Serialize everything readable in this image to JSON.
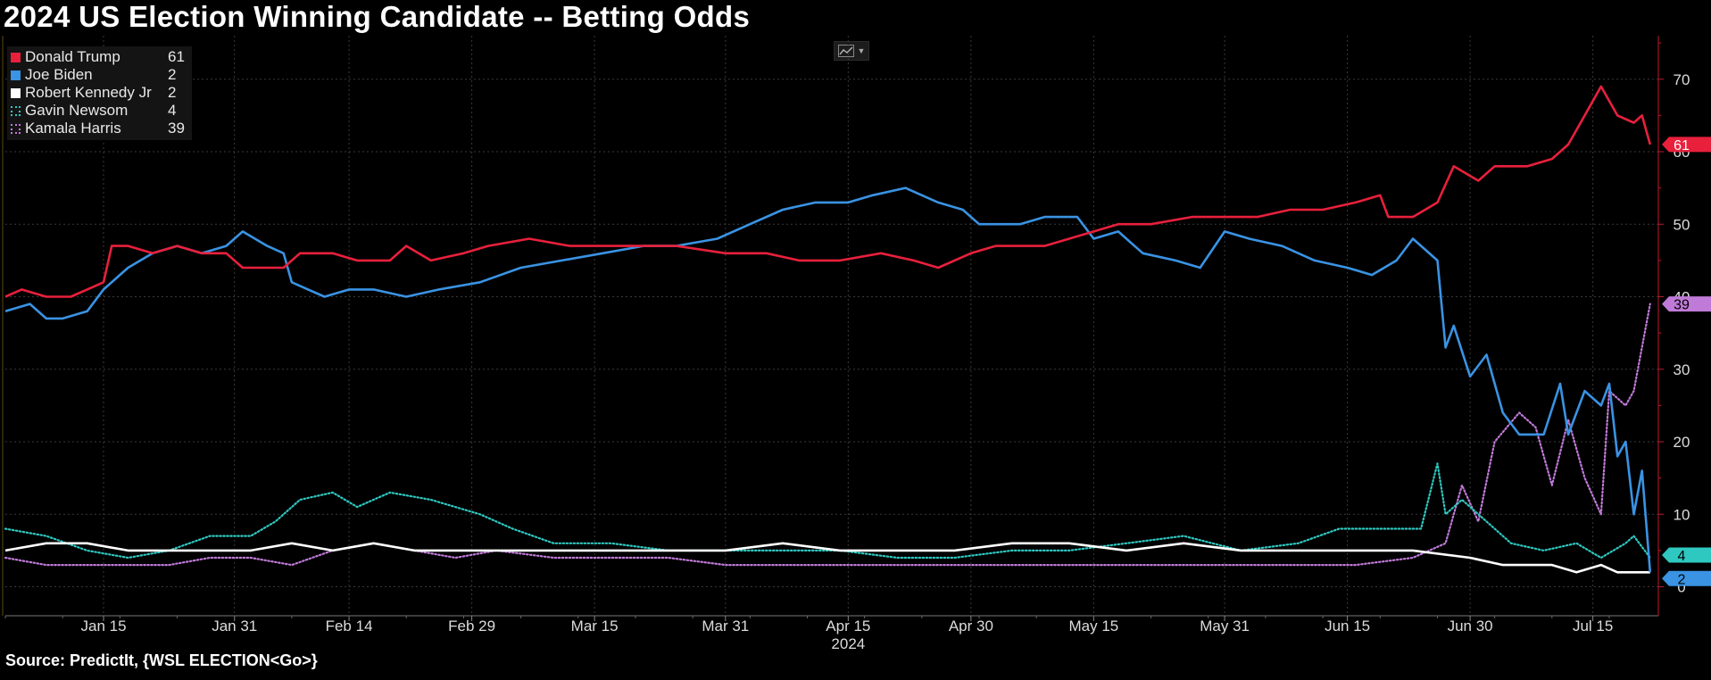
{
  "title": "2024 US Election Winning Candidate -- Betting Odds",
  "source": "Source: PredictIt, {WSL ELECTION<Go>}",
  "toolbar": {
    "icon": "line-chart-icon"
  },
  "chart_data": {
    "type": "line",
    "title": "2024 US Election Winning Candidate -- Betting Odds",
    "xlabel": "2024",
    "ylabel": "",
    "x_range": [
      "2024-01-03",
      "2024-07-23"
    ],
    "ylim": [
      -4,
      76
    ],
    "y_ticks": [
      0,
      10,
      20,
      30,
      40,
      50,
      60,
      70
    ],
    "x_ticks": [
      {
        "date": "2024-01-15",
        "label": "Jan 15"
      },
      {
        "date": "2024-01-31",
        "label": "Jan 31"
      },
      {
        "date": "2024-02-14",
        "label": "Feb 14"
      },
      {
        "date": "2024-02-29",
        "label": "Feb 29"
      },
      {
        "date": "2024-03-15",
        "label": "Mar 15"
      },
      {
        "date": "2024-03-31",
        "label": "Mar 31"
      },
      {
        "date": "2024-04-15",
        "label": "Apr 15"
      },
      {
        "date": "2024-04-30",
        "label": "Apr 30"
      },
      {
        "date": "2024-05-15",
        "label": "May 15"
      },
      {
        "date": "2024-05-31",
        "label": "May 31"
      },
      {
        "date": "2024-06-15",
        "label": "Jun 15"
      },
      {
        "date": "2024-06-30",
        "label": "Jun 30"
      },
      {
        "date": "2024-07-15",
        "label": "Jul 15"
      }
    ],
    "grid": true,
    "legend_position": "top-left",
    "series": [
      {
        "name": "Donald Trump",
        "last": "61",
        "color": "#e8203c",
        "style": "solid",
        "points": [
          [
            "2024-01-03",
            40
          ],
          [
            "2024-01-05",
            41
          ],
          [
            "2024-01-08",
            40
          ],
          [
            "2024-01-11",
            40
          ],
          [
            "2024-01-13",
            41
          ],
          [
            "2024-01-15",
            42
          ],
          [
            "2024-01-16",
            47
          ],
          [
            "2024-01-18",
            47
          ],
          [
            "2024-01-21",
            46
          ],
          [
            "2024-01-24",
            47
          ],
          [
            "2024-01-27",
            46
          ],
          [
            "2024-01-30",
            46
          ],
          [
            "2024-02-01",
            44
          ],
          [
            "2024-02-03",
            44
          ],
          [
            "2024-02-06",
            44
          ],
          [
            "2024-02-08",
            46
          ],
          [
            "2024-02-12",
            46
          ],
          [
            "2024-02-15",
            45
          ],
          [
            "2024-02-19",
            45
          ],
          [
            "2024-02-21",
            47
          ],
          [
            "2024-02-24",
            45
          ],
          [
            "2024-02-28",
            46
          ],
          [
            "2024-03-02",
            47
          ],
          [
            "2024-03-07",
            48
          ],
          [
            "2024-03-12",
            47
          ],
          [
            "2024-03-16",
            47
          ],
          [
            "2024-03-20",
            47
          ],
          [
            "2024-03-25",
            47
          ],
          [
            "2024-03-31",
            46
          ],
          [
            "2024-04-05",
            46
          ],
          [
            "2024-04-09",
            45
          ],
          [
            "2024-04-14",
            45
          ],
          [
            "2024-04-19",
            46
          ],
          [
            "2024-04-23",
            45
          ],
          [
            "2024-04-26",
            44
          ],
          [
            "2024-04-30",
            46
          ],
          [
            "2024-05-03",
            47
          ],
          [
            "2024-05-09",
            47
          ],
          [
            "2024-05-12",
            48
          ],
          [
            "2024-05-15",
            49
          ],
          [
            "2024-05-18",
            50
          ],
          [
            "2024-05-22",
            50
          ],
          [
            "2024-05-27",
            51
          ],
          [
            "2024-05-31",
            51
          ],
          [
            "2024-06-04",
            51
          ],
          [
            "2024-06-08",
            52
          ],
          [
            "2024-06-12",
            52
          ],
          [
            "2024-06-16",
            53
          ],
          [
            "2024-06-19",
            54
          ],
          [
            "2024-06-20",
            51
          ],
          [
            "2024-06-23",
            51
          ],
          [
            "2024-06-26",
            53
          ],
          [
            "2024-06-28",
            58
          ],
          [
            "2024-07-01",
            56
          ],
          [
            "2024-07-03",
            58
          ],
          [
            "2024-07-07",
            58
          ],
          [
            "2024-07-10",
            59
          ],
          [
            "2024-07-12",
            61
          ],
          [
            "2024-07-14",
            65
          ],
          [
            "2024-07-16",
            69
          ],
          [
            "2024-07-18",
            65
          ],
          [
            "2024-07-20",
            64
          ],
          [
            "2024-07-21",
            65
          ],
          [
            "2024-07-22",
            61
          ]
        ]
      },
      {
        "name": "Joe Biden",
        "last": "2",
        "color": "#3a93e3",
        "style": "solid",
        "points": [
          [
            "2024-01-03",
            38
          ],
          [
            "2024-01-06",
            39
          ],
          [
            "2024-01-08",
            37
          ],
          [
            "2024-01-10",
            37
          ],
          [
            "2024-01-13",
            38
          ],
          [
            "2024-01-15",
            41
          ],
          [
            "2024-01-18",
            44
          ],
          [
            "2024-01-21",
            46
          ],
          [
            "2024-01-24",
            47
          ],
          [
            "2024-01-27",
            46
          ],
          [
            "2024-01-30",
            47
          ],
          [
            "2024-02-01",
            49
          ],
          [
            "2024-02-04",
            47
          ],
          [
            "2024-02-06",
            46
          ],
          [
            "2024-02-07",
            42
          ],
          [
            "2024-02-09",
            41
          ],
          [
            "2024-02-11",
            40
          ],
          [
            "2024-02-14",
            41
          ],
          [
            "2024-02-17",
            41
          ],
          [
            "2024-02-21",
            40
          ],
          [
            "2024-02-25",
            41
          ],
          [
            "2024-03-01",
            42
          ],
          [
            "2024-03-06",
            44
          ],
          [
            "2024-03-11",
            45
          ],
          [
            "2024-03-16",
            46
          ],
          [
            "2024-03-21",
            47
          ],
          [
            "2024-03-25",
            47
          ],
          [
            "2024-03-30",
            48
          ],
          [
            "2024-04-03",
            50
          ],
          [
            "2024-04-07",
            52
          ],
          [
            "2024-04-11",
            53
          ],
          [
            "2024-04-15",
            53
          ],
          [
            "2024-04-18",
            54
          ],
          [
            "2024-04-22",
            55
          ],
          [
            "2024-04-26",
            53
          ],
          [
            "2024-04-29",
            52
          ],
          [
            "2024-05-01",
            50
          ],
          [
            "2024-05-06",
            50
          ],
          [
            "2024-05-09",
            51
          ],
          [
            "2024-05-13",
            51
          ],
          [
            "2024-05-15",
            48
          ],
          [
            "2024-05-18",
            49
          ],
          [
            "2024-05-21",
            46
          ],
          [
            "2024-05-25",
            45
          ],
          [
            "2024-05-28",
            44
          ],
          [
            "2024-05-31",
            49
          ],
          [
            "2024-06-03",
            48
          ],
          [
            "2024-06-07",
            47
          ],
          [
            "2024-06-11",
            45
          ],
          [
            "2024-06-15",
            44
          ],
          [
            "2024-06-18",
            43
          ],
          [
            "2024-06-21",
            45
          ],
          [
            "2024-06-23",
            48
          ],
          [
            "2024-06-26",
            45
          ],
          [
            "2024-06-27",
            33
          ],
          [
            "2024-06-28",
            36
          ],
          [
            "2024-06-30",
            29
          ],
          [
            "2024-07-02",
            32
          ],
          [
            "2024-07-04",
            24
          ],
          [
            "2024-07-06",
            21
          ],
          [
            "2024-07-09",
            21
          ],
          [
            "2024-07-11",
            28
          ],
          [
            "2024-07-12",
            21
          ],
          [
            "2024-07-14",
            27
          ],
          [
            "2024-07-16",
            25
          ],
          [
            "2024-07-17",
            28
          ],
          [
            "2024-07-18",
            18
          ],
          [
            "2024-07-19",
            20
          ],
          [
            "2024-07-20",
            10
          ],
          [
            "2024-07-21",
            16
          ],
          [
            "2024-07-22",
            2
          ]
        ]
      },
      {
        "name": "Robert Kennedy Jr",
        "last": "2",
        "color": "#ffffff",
        "style": "solid",
        "points": [
          [
            "2024-01-03",
            5
          ],
          [
            "2024-01-08",
            6
          ],
          [
            "2024-01-13",
            6
          ],
          [
            "2024-01-18",
            5
          ],
          [
            "2024-01-23",
            5
          ],
          [
            "2024-01-28",
            5
          ],
          [
            "2024-02-02",
            5
          ],
          [
            "2024-02-07",
            6
          ],
          [
            "2024-02-12",
            5
          ],
          [
            "2024-02-17",
            6
          ],
          [
            "2024-02-22",
            5
          ],
          [
            "2024-02-27",
            5
          ],
          [
            "2024-03-03",
            5
          ],
          [
            "2024-03-10",
            5
          ],
          [
            "2024-03-17",
            5
          ],
          [
            "2024-03-24",
            5
          ],
          [
            "2024-03-31",
            5
          ],
          [
            "2024-04-07",
            6
          ],
          [
            "2024-04-14",
            5
          ],
          [
            "2024-04-21",
            5
          ],
          [
            "2024-04-28",
            5
          ],
          [
            "2024-05-05",
            6
          ],
          [
            "2024-05-12",
            6
          ],
          [
            "2024-05-19",
            5
          ],
          [
            "2024-05-26",
            6
          ],
          [
            "2024-06-02",
            5
          ],
          [
            "2024-06-09",
            5
          ],
          [
            "2024-06-16",
            5
          ],
          [
            "2024-06-23",
            5
          ],
          [
            "2024-06-30",
            4
          ],
          [
            "2024-07-04",
            3
          ],
          [
            "2024-07-10",
            3
          ],
          [
            "2024-07-13",
            2
          ],
          [
            "2024-07-16",
            3
          ],
          [
            "2024-07-18",
            2
          ],
          [
            "2024-07-22",
            2
          ]
        ]
      },
      {
        "name": "Gavin Newsom",
        "last": "4",
        "color": "#2ec8c0",
        "style": "dotted",
        "points": [
          [
            "2024-01-03",
            8
          ],
          [
            "2024-01-08",
            7
          ],
          [
            "2024-01-13",
            5
          ],
          [
            "2024-01-18",
            4
          ],
          [
            "2024-01-23",
            5
          ],
          [
            "2024-01-28",
            7
          ],
          [
            "2024-02-02",
            7
          ],
          [
            "2024-02-05",
            9
          ],
          [
            "2024-02-08",
            12
          ],
          [
            "2024-02-12",
            13
          ],
          [
            "2024-02-15",
            11
          ],
          [
            "2024-02-19",
            13
          ],
          [
            "2024-02-24",
            12
          ],
          [
            "2024-03-01",
            10
          ],
          [
            "2024-03-05",
            8
          ],
          [
            "2024-03-10",
            6
          ],
          [
            "2024-03-17",
            6
          ],
          [
            "2024-03-24",
            5
          ],
          [
            "2024-03-31",
            5
          ],
          [
            "2024-04-07",
            5
          ],
          [
            "2024-04-14",
            5
          ],
          [
            "2024-04-21",
            4
          ],
          [
            "2024-04-28",
            4
          ],
          [
            "2024-05-05",
            5
          ],
          [
            "2024-05-12",
            5
          ],
          [
            "2024-05-19",
            6
          ],
          [
            "2024-05-26",
            7
          ],
          [
            "2024-06-02",
            5
          ],
          [
            "2024-06-09",
            6
          ],
          [
            "2024-06-14",
            8
          ],
          [
            "2024-06-19",
            8
          ],
          [
            "2024-06-24",
            8
          ],
          [
            "2024-06-26",
            17
          ],
          [
            "2024-06-27",
            10
          ],
          [
            "2024-06-29",
            12
          ],
          [
            "2024-07-02",
            9
          ],
          [
            "2024-07-05",
            6
          ],
          [
            "2024-07-09",
            5
          ],
          [
            "2024-07-13",
            6
          ],
          [
            "2024-07-16",
            4
          ],
          [
            "2024-07-19",
            6
          ],
          [
            "2024-07-20",
            7
          ],
          [
            "2024-07-22",
            4
          ]
        ]
      },
      {
        "name": "Kamala Harris",
        "last": "39",
        "color": "#c07ad8",
        "style": "dotted",
        "points": [
          [
            "2024-01-03",
            4
          ],
          [
            "2024-01-08",
            3
          ],
          [
            "2024-01-13",
            3
          ],
          [
            "2024-01-18",
            3
          ],
          [
            "2024-01-23",
            3
          ],
          [
            "2024-01-28",
            4
          ],
          [
            "2024-02-02",
            4
          ],
          [
            "2024-02-07",
            3
          ],
          [
            "2024-02-12",
            5
          ],
          [
            "2024-02-17",
            6
          ],
          [
            "2024-02-22",
            5
          ],
          [
            "2024-02-27",
            4
          ],
          [
            "2024-03-03",
            5
          ],
          [
            "2024-03-10",
            4
          ],
          [
            "2024-03-17",
            4
          ],
          [
            "2024-03-24",
            4
          ],
          [
            "2024-03-31",
            3
          ],
          [
            "2024-04-07",
            3
          ],
          [
            "2024-04-14",
            3
          ],
          [
            "2024-04-21",
            3
          ],
          [
            "2024-04-28",
            3
          ],
          [
            "2024-05-05",
            3
          ],
          [
            "2024-05-12",
            3
          ],
          [
            "2024-05-19",
            3
          ],
          [
            "2024-05-26",
            3
          ],
          [
            "2024-06-02",
            3
          ],
          [
            "2024-06-09",
            3
          ],
          [
            "2024-06-16",
            3
          ],
          [
            "2024-06-23",
            4
          ],
          [
            "2024-06-27",
            6
          ],
          [
            "2024-06-29",
            14
          ],
          [
            "2024-07-01",
            9
          ],
          [
            "2024-07-03",
            20
          ],
          [
            "2024-07-06",
            24
          ],
          [
            "2024-07-08",
            22
          ],
          [
            "2024-07-10",
            14
          ],
          [
            "2024-07-12",
            23
          ],
          [
            "2024-07-14",
            15
          ],
          [
            "2024-07-16",
            10
          ],
          [
            "2024-07-17",
            27
          ],
          [
            "2024-07-19",
            25
          ],
          [
            "2024-07-20",
            27
          ],
          [
            "2024-07-22",
            39
          ]
        ]
      }
    ]
  }
}
